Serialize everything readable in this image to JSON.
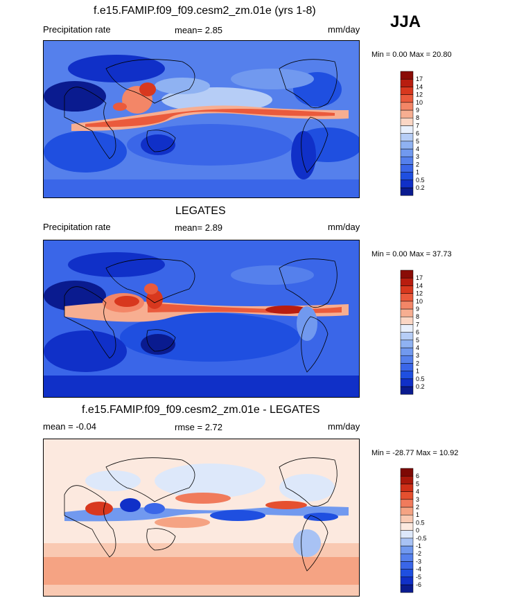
{
  "season": "JJA",
  "panels": [
    {
      "title": "f.e15.FAMIP.f09_f09.cesm2_zm.01e (yrs 1-8)",
      "left_label": "Precipitation rate",
      "center_label": "mean=   2.85",
      "units": "mm/day",
      "minmax": "Min =   0.00 Max =  20.80",
      "levels": [
        "0.2",
        "0.5",
        "1",
        "2",
        "3",
        "4",
        "5",
        "6",
        "7",
        "8",
        "9",
        "10",
        "12",
        "14",
        "17"
      ],
      "colors": [
        "#0a1b8f",
        "#1030c8",
        "#1f4fe0",
        "#3a66e8",
        "#5580ec",
        "#7199ef",
        "#8fb2f2",
        "#b6cdf6",
        "#e9f0fc",
        "#fbd6c4",
        "#f7ae91",
        "#f38667",
        "#ea5a3c",
        "#d8381e",
        "#b81d0f",
        "#8a0c06"
      ]
    },
    {
      "title": "LEGATES",
      "left_label": "Precipitation rate",
      "center_label": "mean=   2.89",
      "units": "mm/day",
      "minmax": "Min =   0.00 Max =  37.73",
      "levels": [
        "0.2",
        "0.5",
        "1",
        "2",
        "3",
        "4",
        "5",
        "6",
        "7",
        "8",
        "9",
        "10",
        "12",
        "14",
        "17"
      ],
      "colors": [
        "#0a1b8f",
        "#1030c8",
        "#1f4fe0",
        "#3a66e8",
        "#5580ec",
        "#7199ef",
        "#8fb2f2",
        "#b6cdf6",
        "#e9f0fc",
        "#fbd6c4",
        "#f7ae91",
        "#f38667",
        "#ea5a3c",
        "#d8381e",
        "#b81d0f",
        "#8a0c06"
      ]
    },
    {
      "title": "f.e15.FAMIP.f09_f09.cesm2_zm.01e - LEGATES",
      "left_label": "mean =  -0.04",
      "center_label": "rmse =   2.72",
      "units": "mm/day",
      "minmax": "Min = -28.77 Max =  10.92",
      "levels": [
        "-6",
        "-5",
        "-4",
        "-3",
        "-2",
        "-1",
        "-0.5",
        "0",
        "0.5",
        "1",
        "2",
        "3",
        "4",
        "5",
        "6"
      ],
      "colors": [
        "#0a1b8f",
        "#1030c8",
        "#1f4fe0",
        "#3a66e8",
        "#5580ec",
        "#7199ef",
        "#a8c2f4",
        "#dde8fa",
        "#fce9df",
        "#f9c9b2",
        "#f5a383",
        "#f07b5c",
        "#e5502f",
        "#cf3018",
        "#a8180b",
        "#7d0904"
      ]
    }
  ],
  "chart_data": [
    {
      "type": "heatmap",
      "title": "f.e15.FAMIP.f09_f09.cesm2_zm.01e (yrs 1-8)",
      "subtitle": "Precipitation rate",
      "units": "mm/day",
      "mean": 2.85,
      "min": 0.0,
      "max": 20.8,
      "contour_levels": [
        0.2,
        0.5,
        1,
        2,
        3,
        4,
        5,
        6,
        7,
        8,
        9,
        10,
        12,
        14,
        17
      ]
    },
    {
      "type": "heatmap",
      "title": "LEGATES",
      "subtitle": "Precipitation rate",
      "units": "mm/day",
      "mean": 2.89,
      "min": 0.0,
      "max": 37.73,
      "contour_levels": [
        0.2,
        0.5,
        1,
        2,
        3,
        4,
        5,
        6,
        7,
        8,
        9,
        10,
        12,
        14,
        17
      ]
    },
    {
      "type": "heatmap",
      "title": "f.e15.FAMIP.f09_f09.cesm2_zm.01e - LEGATES",
      "units": "mm/day",
      "mean": -0.04,
      "rmse": 2.72,
      "min": -28.77,
      "max": 10.92,
      "contour_levels": [
        -6,
        -5,
        -4,
        -3,
        -2,
        -1,
        -0.5,
        0,
        0.5,
        1,
        2,
        3,
        4,
        5,
        6
      ]
    }
  ]
}
